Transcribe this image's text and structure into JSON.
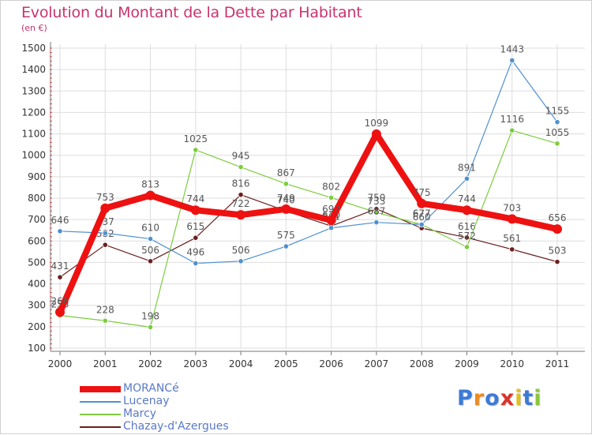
{
  "title": "Evolution du Montant de la Dette par Habitant",
  "subtitle": "(en €)",
  "logo": {
    "text": "Proxiti"
  },
  "chart_data": {
    "type": "line",
    "title": "Evolution du Montant de la Dette par Habitant",
    "ylabel": "(en €)",
    "xlabel": "",
    "ylim": [
      100,
      1500
    ],
    "y_ticks": [
      100,
      200,
      300,
      400,
      500,
      600,
      700,
      800,
      900,
      1000,
      1100,
      1200,
      1300,
      1400,
      1500
    ],
    "grid": true,
    "legend_position": "bottom-left",
    "categories": [
      "2000",
      "2001",
      "2002",
      "2003",
      "2004",
      "2005",
      "2006",
      "2007",
      "2008",
      "2009",
      "2010",
      "2011"
    ],
    "series": [
      {
        "name": "Chazay-d'Azergues",
        "color": "#6b1f1f",
        "values": [
          431,
          582,
          506,
          615,
          816,
          740,
          670,
          750,
          660,
          616,
          561,
          503
        ]
      },
      {
        "name": "Marcy",
        "color": "#7dcc3e",
        "values": [
          253,
          228,
          198,
          1025,
          945,
          867,
          802,
          733,
          677,
          572,
          1116,
          1055
        ]
      },
      {
        "name": "Lucenay",
        "color": "#4f90cf",
        "values": [
          646,
          637,
          610,
          496,
          506,
          575,
          661,
          687,
          677,
          891,
          1443,
          1155
        ]
      },
      {
        "name": "MORANCé",
        "color": "#ee1111",
        "values": [
          268,
          753,
          813,
          744,
          722,
          749,
          697,
          1099,
          775,
          744,
          703,
          656
        ]
      }
    ]
  }
}
